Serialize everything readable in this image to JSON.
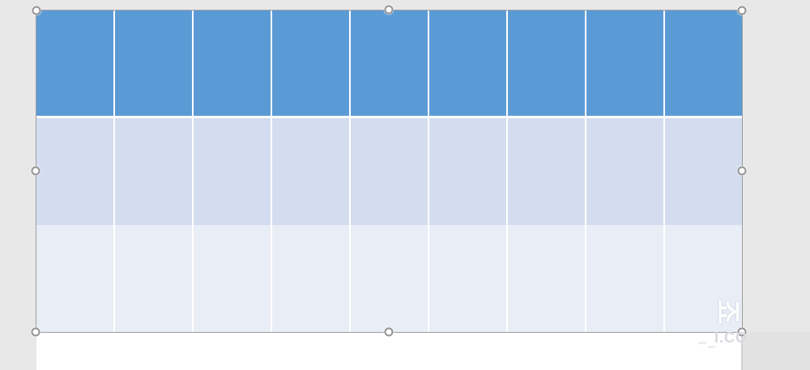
{
  "app": {
    "description": "Slide editor canvas with a selected empty themed table"
  },
  "canvas": {
    "background_color": "#E8E8E8",
    "slide_color": "#FFFFFF"
  },
  "table": {
    "columns": 9,
    "rows": 3,
    "header_fill": "#5B9BD5",
    "band_row_fill": "#D3DDEF",
    "alt_row_fill": "#E9EDF6",
    "grid_line_color": "#FFFFFF",
    "cells": [
      [
        "",
        "",
        "",
        "",
        "",
        "",
        "",
        "",
        ""
      ],
      [
        "",
        "",
        "",
        "",
        "",
        "",
        "",
        "",
        ""
      ],
      [
        "",
        "",
        "",
        "",
        "",
        "",
        "",
        "",
        ""
      ]
    ]
  },
  "selection": {
    "border_color": "#9D9D9D",
    "handle_fill": "#FFFFFF",
    "handle_border": "#949494",
    "handles": [
      "top-left",
      "top-middle",
      "top-right",
      "middle-left",
      "middle-right",
      "bottom-left",
      "bottom-middle",
      "bottom-right"
    ]
  },
  "watermark": {
    "vertical_glyph": "죠",
    "caption": "I.CO"
  }
}
